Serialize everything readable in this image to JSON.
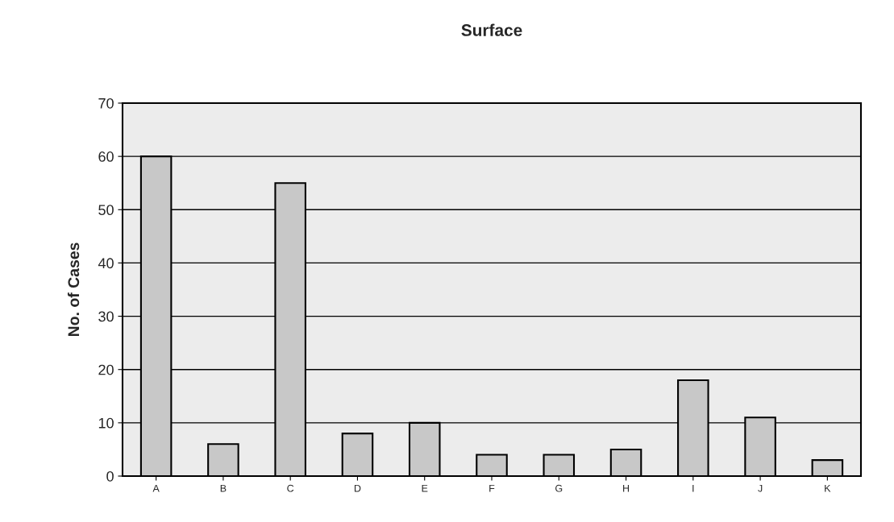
{
  "chart_data": {
    "type": "bar",
    "title": "Surface",
    "ylabel": "No. of Cases",
    "categories": [
      "A",
      "B",
      "C",
      "D",
      "E",
      "F",
      "G",
      "H",
      "I",
      "J",
      "K"
    ],
    "values": [
      60,
      6,
      55,
      8,
      10,
      4,
      4,
      5,
      18,
      11,
      3
    ],
    "color": "#c8c8c8",
    "ylim": [
      0,
      70
    ],
    "yticks": [
      0,
      10,
      20,
      30,
      40,
      50,
      60,
      70
    ],
    "grid": "y"
  }
}
